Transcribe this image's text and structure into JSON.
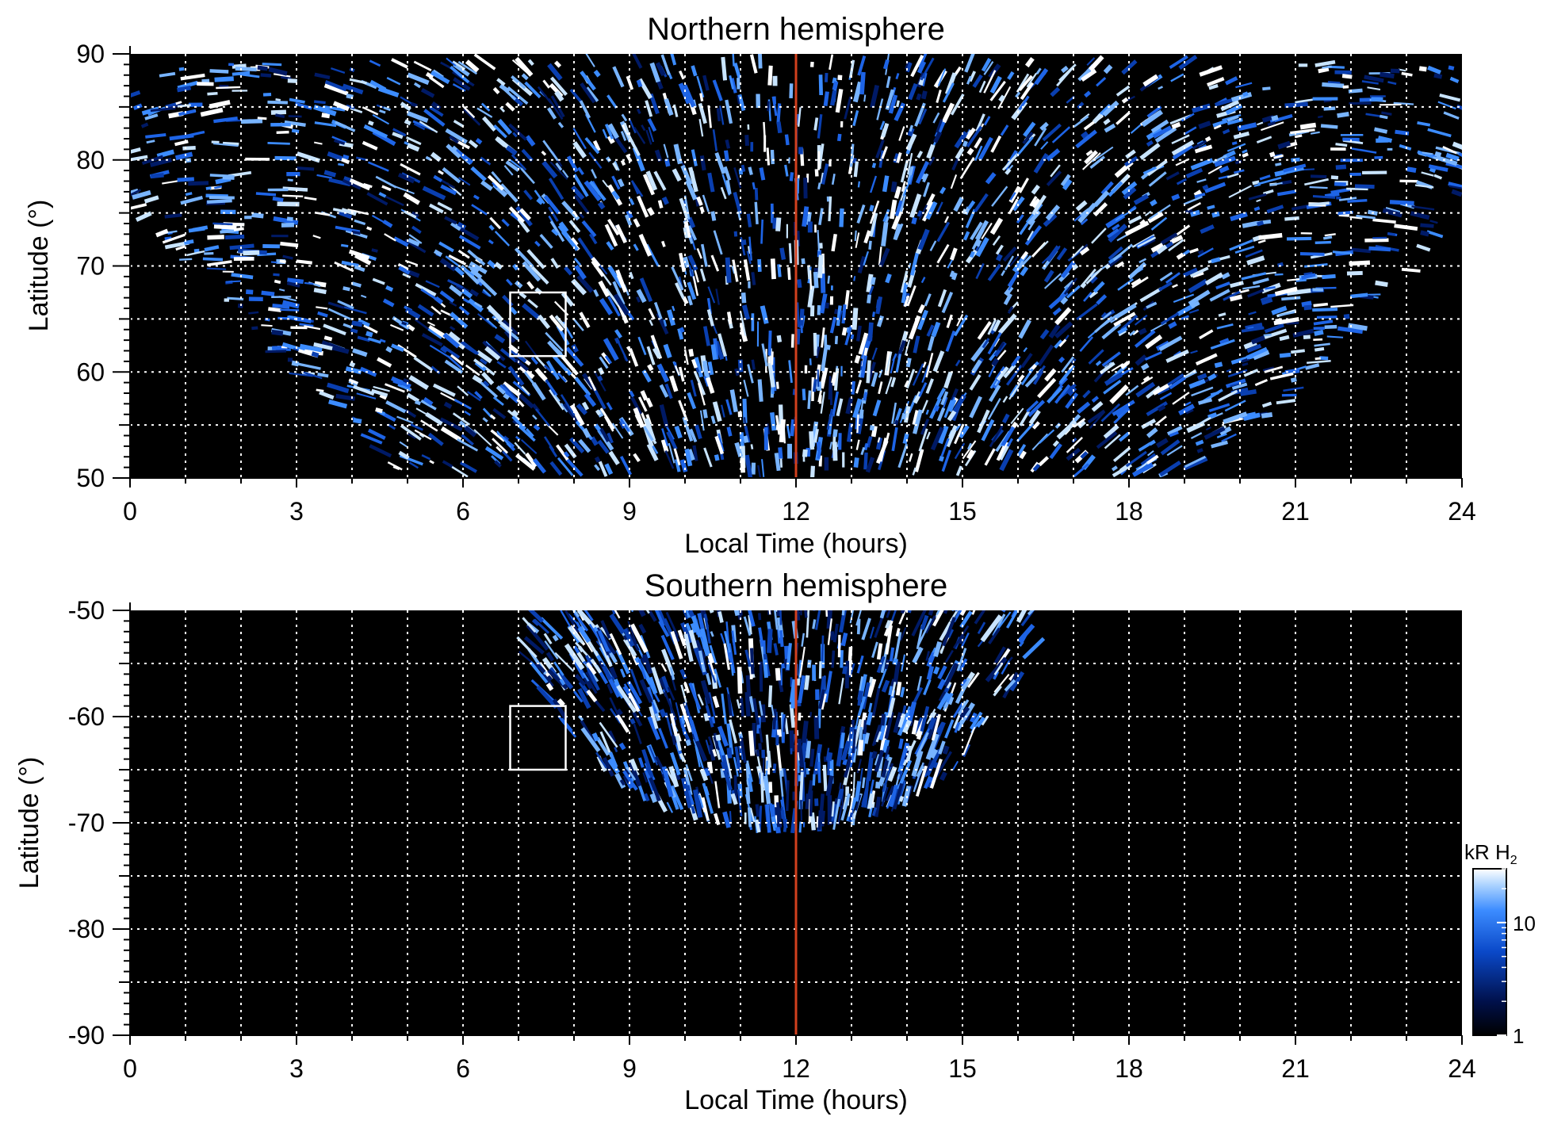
{
  "chart_data": [
    {
      "type": "heatmap",
      "title": "Northern hemisphere",
      "xlabel": "Local Time (hours)",
      "ylabel": "Latitude (°)",
      "xlim": [
        0,
        24
      ],
      "ylim": [
        50,
        90
      ],
      "x_ticks": [
        0,
        3,
        6,
        9,
        12,
        15,
        18,
        21,
        24
      ],
      "x_tick_labels": [
        "0",
        "3",
        "6",
        "9",
        "12",
        "15",
        "18",
        "21",
        "24"
      ],
      "y_ticks": [
        90,
        80,
        70,
        60,
        50
      ],
      "y_tick_labels": [
        "90",
        "80",
        "70",
        "60",
        "50"
      ],
      "grid": true,
      "background_color": "#000000",
      "reference_line": {
        "local_time": 12,
        "color": "#d2401e"
      },
      "box": {
        "lt_min": 6.85,
        "lt_max": 7.85,
        "lat_min": 61.5,
        "lat_max": 67.5
      },
      "coverage_note_lat_bounds": {
        "lat_min": 50,
        "lat_max": 90
      }
    },
    {
      "type": "heatmap",
      "title": "Southern hemisphere",
      "xlabel": "Local Time (hours)",
      "ylabel": "Latitude (°)",
      "xlim": [
        0,
        24
      ],
      "ylim": [
        -90,
        -50
      ],
      "x_ticks": [
        0,
        3,
        6,
        9,
        12,
        15,
        18,
        21,
        24
      ],
      "x_tick_labels": [
        "0",
        "3",
        "6",
        "9",
        "12",
        "15",
        "18",
        "21",
        "24"
      ],
      "y_ticks": [
        -50,
        -60,
        -70,
        -80,
        -90
      ],
      "y_tick_labels": [
        "-50",
        "-60",
        "-70",
        "-80",
        "-90"
      ],
      "grid": true,
      "background_color": "#000000",
      "reference_line": {
        "local_time": 12,
        "color": "#d2401e"
      },
      "box": {
        "lt_min": 6.85,
        "lt_max": 7.85,
        "lat_min": -65,
        "lat_max": -59
      }
    }
  ],
  "colorbar": {
    "label_main": "kR H",
    "label_sub": "2",
    "scale": "log",
    "range": [
      1,
      30
    ],
    "ticks": [
      1,
      10
    ],
    "tick_labels": [
      "1",
      "10"
    ],
    "colors": [
      "#000000",
      "#00104a",
      "#0a48c8",
      "#3c8cff",
      "#aad2ff",
      "#ffffff"
    ]
  }
}
